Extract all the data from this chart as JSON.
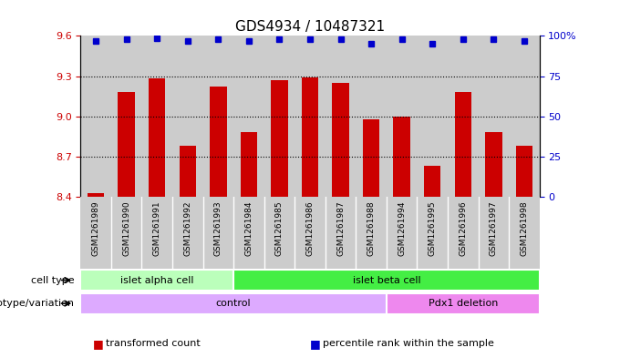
{
  "title": "GDS4934 / 10487321",
  "samples": [
    "GSM1261989",
    "GSM1261990",
    "GSM1261991",
    "GSM1261992",
    "GSM1261993",
    "GSM1261984",
    "GSM1261985",
    "GSM1261986",
    "GSM1261987",
    "GSM1261988",
    "GSM1261994",
    "GSM1261995",
    "GSM1261996",
    "GSM1261997",
    "GSM1261998"
  ],
  "bar_values": [
    8.43,
    9.18,
    9.28,
    8.78,
    9.22,
    8.88,
    9.27,
    9.29,
    9.25,
    8.98,
    9.0,
    8.63,
    9.18,
    8.88,
    8.78
  ],
  "dot_values": [
    97,
    98,
    98.5,
    97,
    98,
    97,
    98,
    98,
    98,
    95,
    98,
    95,
    98,
    98,
    97
  ],
  "bar_color": "#cc0000",
  "dot_color": "#0000cc",
  "ylim_left": [
    8.4,
    9.6
  ],
  "ylim_right": [
    0,
    100
  ],
  "yticks_left": [
    8.4,
    8.7,
    9.0,
    9.3,
    9.6
  ],
  "yticks_right": [
    0,
    25,
    50,
    75,
    100
  ],
  "grid_lines": [
    8.7,
    9.0,
    9.3
  ],
  "cell_type_labels": [
    {
      "label": "islet alpha cell",
      "start": 0,
      "end": 5,
      "color": "#bbffbb"
    },
    {
      "label": "islet beta cell",
      "start": 5,
      "end": 15,
      "color": "#44ee44"
    }
  ],
  "genotype_labels": [
    {
      "label": "control",
      "start": 0,
      "end": 10,
      "color": "#ddaaff"
    },
    {
      "label": "Pdx1 deletion",
      "start": 10,
      "end": 15,
      "color": "#ee88ee"
    }
  ],
  "legend_items": [
    {
      "color": "#cc0000",
      "label": "transformed count"
    },
    {
      "color": "#0000cc",
      "label": "percentile rank within the sample"
    }
  ],
  "fig_bg": "#ffffff",
  "tick_area_bg": "#cccccc"
}
